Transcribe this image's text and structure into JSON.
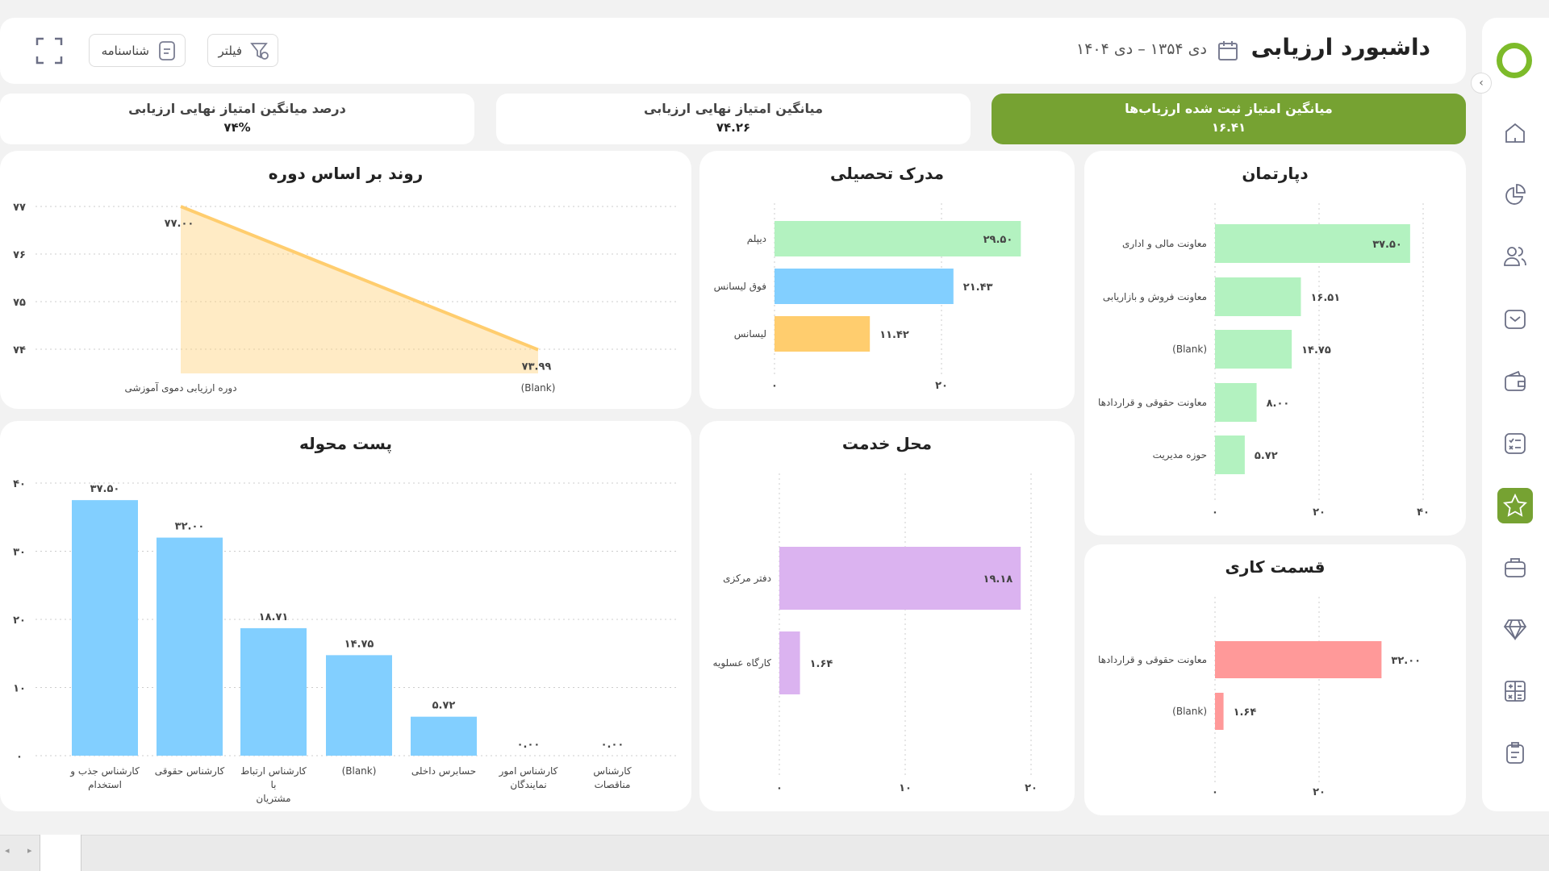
{
  "header": {
    "title": "داشبورد ارزیابی",
    "date_range": "دی ۱۳۵۴ – دی ۱۴۰۴",
    "filter_label": "فیلتر",
    "profile_label": "شناسنامه"
  },
  "kpis": [
    {
      "label": "میانگین امتیاز ثبت شده ارزیاب‌ها",
      "value": "۱۶.۴۱",
      "highlight": true
    },
    {
      "label": "میانگین امتیاز نهایی ارزیابی",
      "value": "۷۴.۲۶"
    },
    {
      "label": "درصد میانگین امتیاز نهایی ارزیابی",
      "value": "۷۴%"
    }
  ],
  "colors": {
    "accent": "#76a232",
    "green_bar": "#b3f2c0",
    "blue_bar": "#82cfff",
    "orange": "#ffcd6e",
    "purple": "#dbb3f0",
    "red": "#ff9999"
  },
  "sidebar": {
    "icons": [
      "home-icon",
      "pie-chart-icon",
      "users-icon",
      "inbox-icon",
      "wallet-icon",
      "checklist-icon",
      "star-icon",
      "briefcase-icon",
      "diamond-icon",
      "calculator-icon",
      "clipboard-icon"
    ],
    "active": "star-icon"
  },
  "chart_data": [
    {
      "id": "trend",
      "type": "area",
      "title": "روند بر اساس دوره",
      "categories": [
        "دوره ارزیابی دموی آموزشی",
        "(Blank)"
      ],
      "values": [
        77.0,
        73.99
      ],
      "value_labels": [
        "۷۷.۰۰",
        "۷۳.۹۹"
      ],
      "ylim": [
        74,
        77
      ],
      "yticks": [
        74,
        75,
        76,
        77
      ],
      "ytick_labels": [
        "۷۴",
        "۷۵",
        "۷۶",
        "۷۷"
      ],
      "grid": true,
      "color": "#ffcd6e"
    },
    {
      "id": "education",
      "type": "bar",
      "orientation": "horizontal",
      "title": "مدرک تحصیلی",
      "categories": [
        "دیپلم",
        "فوق لیسانس",
        "لیسانس"
      ],
      "values": [
        29.5,
        21.43,
        11.42
      ],
      "value_labels": [
        "۲۹.۵۰",
        "۲۱.۴۳",
        "۱۱.۴۲"
      ],
      "colors": [
        "#b3f2c0",
        "#82cfff",
        "#ffcd6e"
      ],
      "xticks": [
        0,
        20
      ],
      "xtick_labels": [
        "۰",
        "۲۰"
      ],
      "grid": true
    },
    {
      "id": "department",
      "type": "bar",
      "orientation": "horizontal",
      "title": "دپارتمان",
      "categories": [
        "معاونت مالی و اداری",
        "معاونت فروش و بازاریابی",
        "(Blank)",
        "معاونت حقوقی و قراردادها",
        "حوزه مدیریت"
      ],
      "values": [
        37.5,
        16.51,
        14.75,
        8.0,
        5.72
      ],
      "value_labels": [
        "۳۷.۵۰",
        "۱۶.۵۱",
        "۱۴.۷۵",
        "۸.۰۰",
        "۵.۷۲"
      ],
      "colors": [
        "#b3f2c0"
      ],
      "xticks": [
        0,
        20,
        40
      ],
      "xtick_labels": [
        "۰",
        "۲۰",
        "۴۰"
      ],
      "grid": true
    },
    {
      "id": "post",
      "type": "bar",
      "orientation": "vertical",
      "title": "پست محوله",
      "categories": [
        [
          "کارشناس جذب و",
          "استخدام"
        ],
        [
          "کارشناس حقوقی"
        ],
        [
          "کارشناس ارتباط با",
          "مشتریان"
        ],
        [
          "(Blank)"
        ],
        [
          "حسابرس داخلی"
        ],
        [
          "کارشناس امور",
          "نمایندگان"
        ],
        [
          "کارشناس مناقصات"
        ]
      ],
      "values": [
        37.5,
        32.0,
        18.71,
        14.75,
        5.72,
        0.0,
        0.0
      ],
      "value_labels": [
        "۳۷.۵۰",
        "۳۲.۰۰",
        "۱۸.۷۱",
        "۱۴.۷۵",
        "۵.۷۲",
        "۰.۰۰",
        "۰.۰۰"
      ],
      "colors": [
        "#82cfff"
      ],
      "ylim": [
        0,
        40
      ],
      "yticks": [
        0,
        10,
        20,
        30,
        40
      ],
      "ytick_labels": [
        "۰",
        "۱۰",
        "۲۰",
        "۳۰",
        "۴۰"
      ],
      "grid": true
    },
    {
      "id": "location",
      "type": "bar",
      "orientation": "horizontal",
      "title": "محل خدمت",
      "categories": [
        "دفتر مرکزی",
        "کارگاه عسلویه"
      ],
      "values": [
        19.18,
        1.64
      ],
      "value_labels": [
        "۱۹.۱۸",
        "۱.۶۴"
      ],
      "colors": [
        "#dbb3f0"
      ],
      "xticks": [
        0,
        10,
        20
      ],
      "xtick_labels": [
        "۰",
        "۱۰",
        "۲۰"
      ],
      "grid": true
    },
    {
      "id": "section",
      "type": "bar",
      "orientation": "horizontal",
      "title": "قسمت کاری",
      "categories": [
        "معاونت حقوقی و قراردادها",
        "(Blank)"
      ],
      "values": [
        32.0,
        1.64
      ],
      "value_labels": [
        "۳۲.۰۰",
        "۱.۶۴"
      ],
      "colors": [
        "#ff9999"
      ],
      "xticks": [
        0,
        20
      ],
      "xtick_labels": [
        "۰",
        "۲۰"
      ],
      "grid": true
    }
  ]
}
